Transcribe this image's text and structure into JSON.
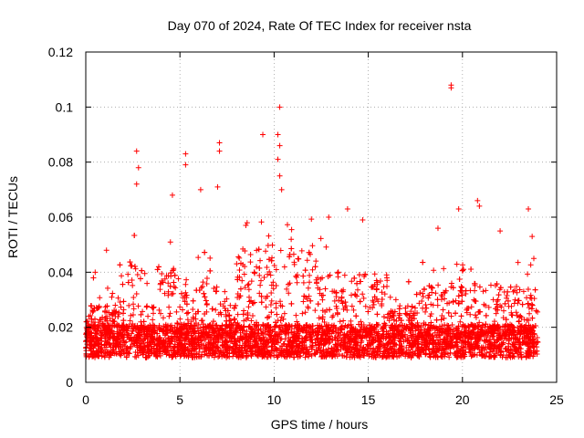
{
  "chart_data": {
    "type": "scatter",
    "title": "Day 070 of 2024, Rate Of TEC Index for receiver nsta",
    "xlabel": "GPS time / hours",
    "ylabel": "ROTI / TECUs",
    "xlim": [
      0,
      25
    ],
    "ylim": [
      0,
      0.12
    ],
    "x_ticks": [
      0,
      5,
      10,
      15,
      20,
      25
    ],
    "x_tick_labels": [
      "0",
      "5",
      "10",
      "15",
      "20",
      "25"
    ],
    "y_ticks": [
      0,
      0.02,
      0.04,
      0.06,
      0.08,
      0.1,
      0.12
    ],
    "y_tick_labels": [
      "0",
      "0.02",
      "0.04",
      "0.06",
      "0.08",
      "0.1",
      "0.12"
    ],
    "grid": true,
    "marker": "+",
    "color": "#ff0000",
    "series": [
      {
        "name": "ROTI",
        "notable_points": [
          {
            "x": 2.7,
            "y": 0.084
          },
          {
            "x": 2.8,
            "y": 0.078
          },
          {
            "x": 2.7,
            "y": 0.072
          },
          {
            "x": 4.6,
            "y": 0.068
          },
          {
            "x": 5.3,
            "y": 0.083
          },
          {
            "x": 5.3,
            "y": 0.079
          },
          {
            "x": 6.1,
            "y": 0.07
          },
          {
            "x": 7.1,
            "y": 0.087
          },
          {
            "x": 7.1,
            "y": 0.084
          },
          {
            "x": 7.0,
            "y": 0.071
          },
          {
            "x": 9.4,
            "y": 0.09
          },
          {
            "x": 10.3,
            "y": 0.1
          },
          {
            "x": 10.2,
            "y": 0.09
          },
          {
            "x": 10.3,
            "y": 0.086
          },
          {
            "x": 10.2,
            "y": 0.081
          },
          {
            "x": 10.3,
            "y": 0.075
          },
          {
            "x": 10.4,
            "y": 0.07
          },
          {
            "x": 19.4,
            "y": 0.108
          },
          {
            "x": 19.4,
            "y": 0.107
          },
          {
            "x": 20.8,
            "y": 0.066
          },
          {
            "x": 20.9,
            "y": 0.064
          },
          {
            "x": 23.5,
            "y": 0.063
          },
          {
            "x": 1.1,
            "y": 0.048
          },
          {
            "x": 0.5,
            "y": 0.04
          },
          {
            "x": 8.5,
            "y": 0.057
          },
          {
            "x": 12.9,
            "y": 0.06
          },
          {
            "x": 13.9,
            "y": 0.063
          },
          {
            "x": 14.7,
            "y": 0.059
          },
          {
            "x": 18.7,
            "y": 0.056
          },
          {
            "x": 19.8,
            "y": 0.063
          },
          {
            "x": 22.0,
            "y": 0.055
          },
          {
            "x": 23.7,
            "y": 0.053
          }
        ],
        "bulk_range": {
          "x_min": 0,
          "x_max": 24,
          "y_min": 0.003,
          "y_max": 0.035,
          "typical": 0.015
        }
      }
    ]
  }
}
